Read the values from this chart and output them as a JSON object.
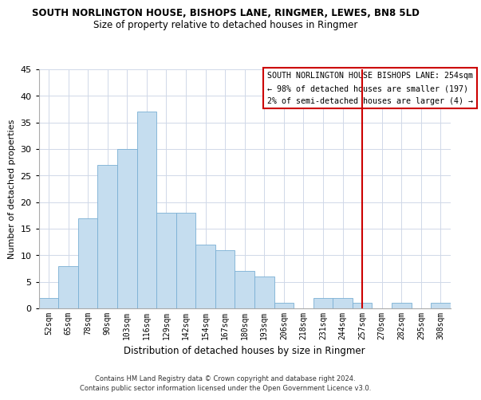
{
  "title": "SOUTH NORLINGTON HOUSE, BISHOPS LANE, RINGMER, LEWES, BN8 5LD",
  "subtitle": "Size of property relative to detached houses in Ringmer",
  "xlabel": "Distribution of detached houses by size in Ringmer",
  "ylabel": "Number of detached properties",
  "bin_labels": [
    "52sqm",
    "65sqm",
    "78sqm",
    "90sqm",
    "103sqm",
    "116sqm",
    "129sqm",
    "142sqm",
    "154sqm",
    "167sqm",
    "180sqm",
    "193sqm",
    "206sqm",
    "218sqm",
    "231sqm",
    "244sqm",
    "257sqm",
    "270sqm",
    "282sqm",
    "295sqm",
    "308sqm"
  ],
  "bar_values": [
    2,
    8,
    17,
    27,
    30,
    37,
    18,
    18,
    12,
    11,
    7,
    6,
    1,
    0,
    2,
    2,
    1,
    0,
    1,
    0,
    1
  ],
  "bar_color": "#c5ddef",
  "bar_edge_color": "#7aafd4",
  "ylim": [
    0,
    45
  ],
  "yticks": [
    0,
    5,
    10,
    15,
    20,
    25,
    30,
    35,
    40,
    45
  ],
  "vline_x_index": 16,
  "vline_color": "#cc0000",
  "annotation_title": "SOUTH NORLINGTON HOUSE BISHOPS LANE: 254sqm",
  "annotation_line1": "← 98% of detached houses are smaller (197)",
  "annotation_line2": "2% of semi-detached houses are larger (4) →",
  "annotation_box_color": "#ffffff",
  "annotation_border_color": "#cc0000",
  "footer_line1": "Contains HM Land Registry data © Crown copyright and database right 2024.",
  "footer_line2": "Contains public sector information licensed under the Open Government Licence v3.0.",
  "background_color": "#ffffff",
  "grid_color": "#d0d8e8"
}
